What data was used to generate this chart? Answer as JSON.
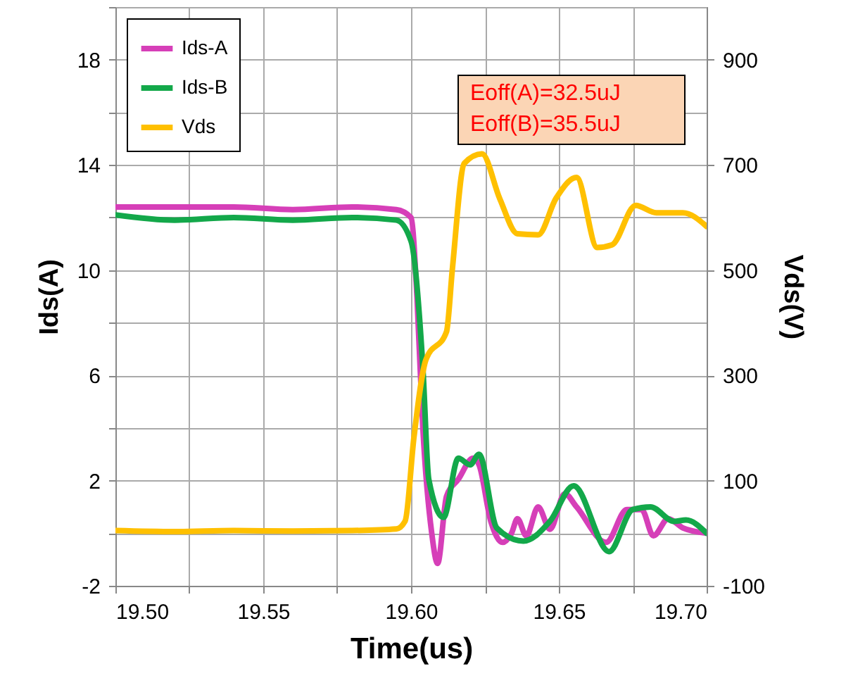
{
  "chart_data": {
    "type": "line",
    "xlabel": "Time(us)",
    "ylabel": "Ids(A)",
    "y2label": "Vds(V)",
    "xlim": [
      19.5,
      19.7
    ],
    "xticks": [
      {
        "value": 19.5,
        "label": "19.50"
      },
      {
        "value": 19.525,
        "label": null
      },
      {
        "value": 19.55,
        "label": "19.55"
      },
      {
        "value": 19.575,
        "label": null
      },
      {
        "value": 19.6,
        "label": "19.60"
      },
      {
        "value": 19.625,
        "label": null
      },
      {
        "value": 19.65,
        "label": "19.65"
      },
      {
        "value": 19.675,
        "label": null
      },
      {
        "value": 19.7,
        "label": "19.70"
      }
    ],
    "ylim": [
      -2,
      20
    ],
    "yticks": [
      -2,
      {
        "value": 0,
        "label": null
      },
      2,
      {
        "value": 4,
        "label": null
      },
      6,
      {
        "value": 8,
        "label": null
      },
      10,
      {
        "value": 12,
        "label": null
      },
      14,
      {
        "value": 16,
        "label": null
      },
      18,
      {
        "value": 20,
        "label": null
      }
    ],
    "y2lim": [
      -100,
      1000
    ],
    "y2ticks": [
      -100,
      100,
      300,
      500,
      700,
      900
    ],
    "grid": true,
    "legend": "top left",
    "line_style": "solid",
    "annotations": [
      "Eoff(A)=32.5uJ",
      "Eoff(B)=35.5uJ"
    ],
    "series": [
      {
        "name": "Ids-A",
        "color": "#d63fb8",
        "x": [
          19.5,
          19.52,
          19.54,
          19.56,
          19.58,
          19.595,
          19.6,
          19.602,
          19.604,
          19.607,
          19.609,
          19.612,
          19.616,
          19.621,
          19.623,
          19.627,
          19.631,
          19.634,
          19.636,
          19.639,
          19.643,
          19.647,
          19.652,
          19.656,
          19.666,
          19.673,
          19.678,
          19.682,
          19.687,
          19.692,
          19.7
        ],
        "values": [
          12.4,
          12.4,
          12.4,
          12.3,
          12.4,
          12.3,
          12.0,
          9.0,
          4.0,
          0.0,
          -1.15,
          1.4,
          2.05,
          2.85,
          2.6,
          0.45,
          -0.35,
          0.0,
          0.55,
          -0.1,
          1.0,
          0.15,
          1.5,
          1.0,
          -0.35,
          0.9,
          0.9,
          -0.1,
          0.55,
          0.2,
          0.0
        ]
      },
      {
        "name": "Ids-B",
        "color": "#13a84a",
        "x": [
          19.5,
          19.52,
          19.54,
          19.56,
          19.58,
          19.595,
          19.6,
          19.604,
          19.606,
          19.611,
          19.616,
          19.62,
          19.623,
          19.629,
          19.638,
          19.647,
          19.655,
          19.667,
          19.675,
          19.681,
          19.689,
          19.693,
          19.7
        ],
        "values": [
          12.1,
          11.9,
          12.0,
          11.9,
          12.0,
          11.9,
          11.1,
          6.3,
          2.05,
          0.6,
          2.85,
          2.6,
          3.0,
          0.2,
          -0.3,
          0.45,
          1.8,
          -0.7,
          0.9,
          1.0,
          0.45,
          0.5,
          0.0
        ]
      },
      {
        "name": "Vds",
        "color": "#ffc000",
        "axis": "y2",
        "x": [
          19.5,
          19.52,
          19.54,
          19.56,
          19.58,
          19.595,
          19.598,
          19.601,
          19.605,
          19.612,
          19.614,
          19.618,
          19.624,
          19.63,
          19.636,
          19.643,
          19.649,
          19.656,
          19.663,
          19.668,
          19.676,
          19.683,
          19.692,
          19.7
        ],
        "values": [
          5,
          3,
          5,
          4,
          5,
          8,
          23,
          183,
          329,
          383,
          503,
          703,
          721,
          636,
          569,
          567,
          636,
          676,
          543,
          548,
          623,
          609,
          609,
          583
        ]
      }
    ]
  }
}
